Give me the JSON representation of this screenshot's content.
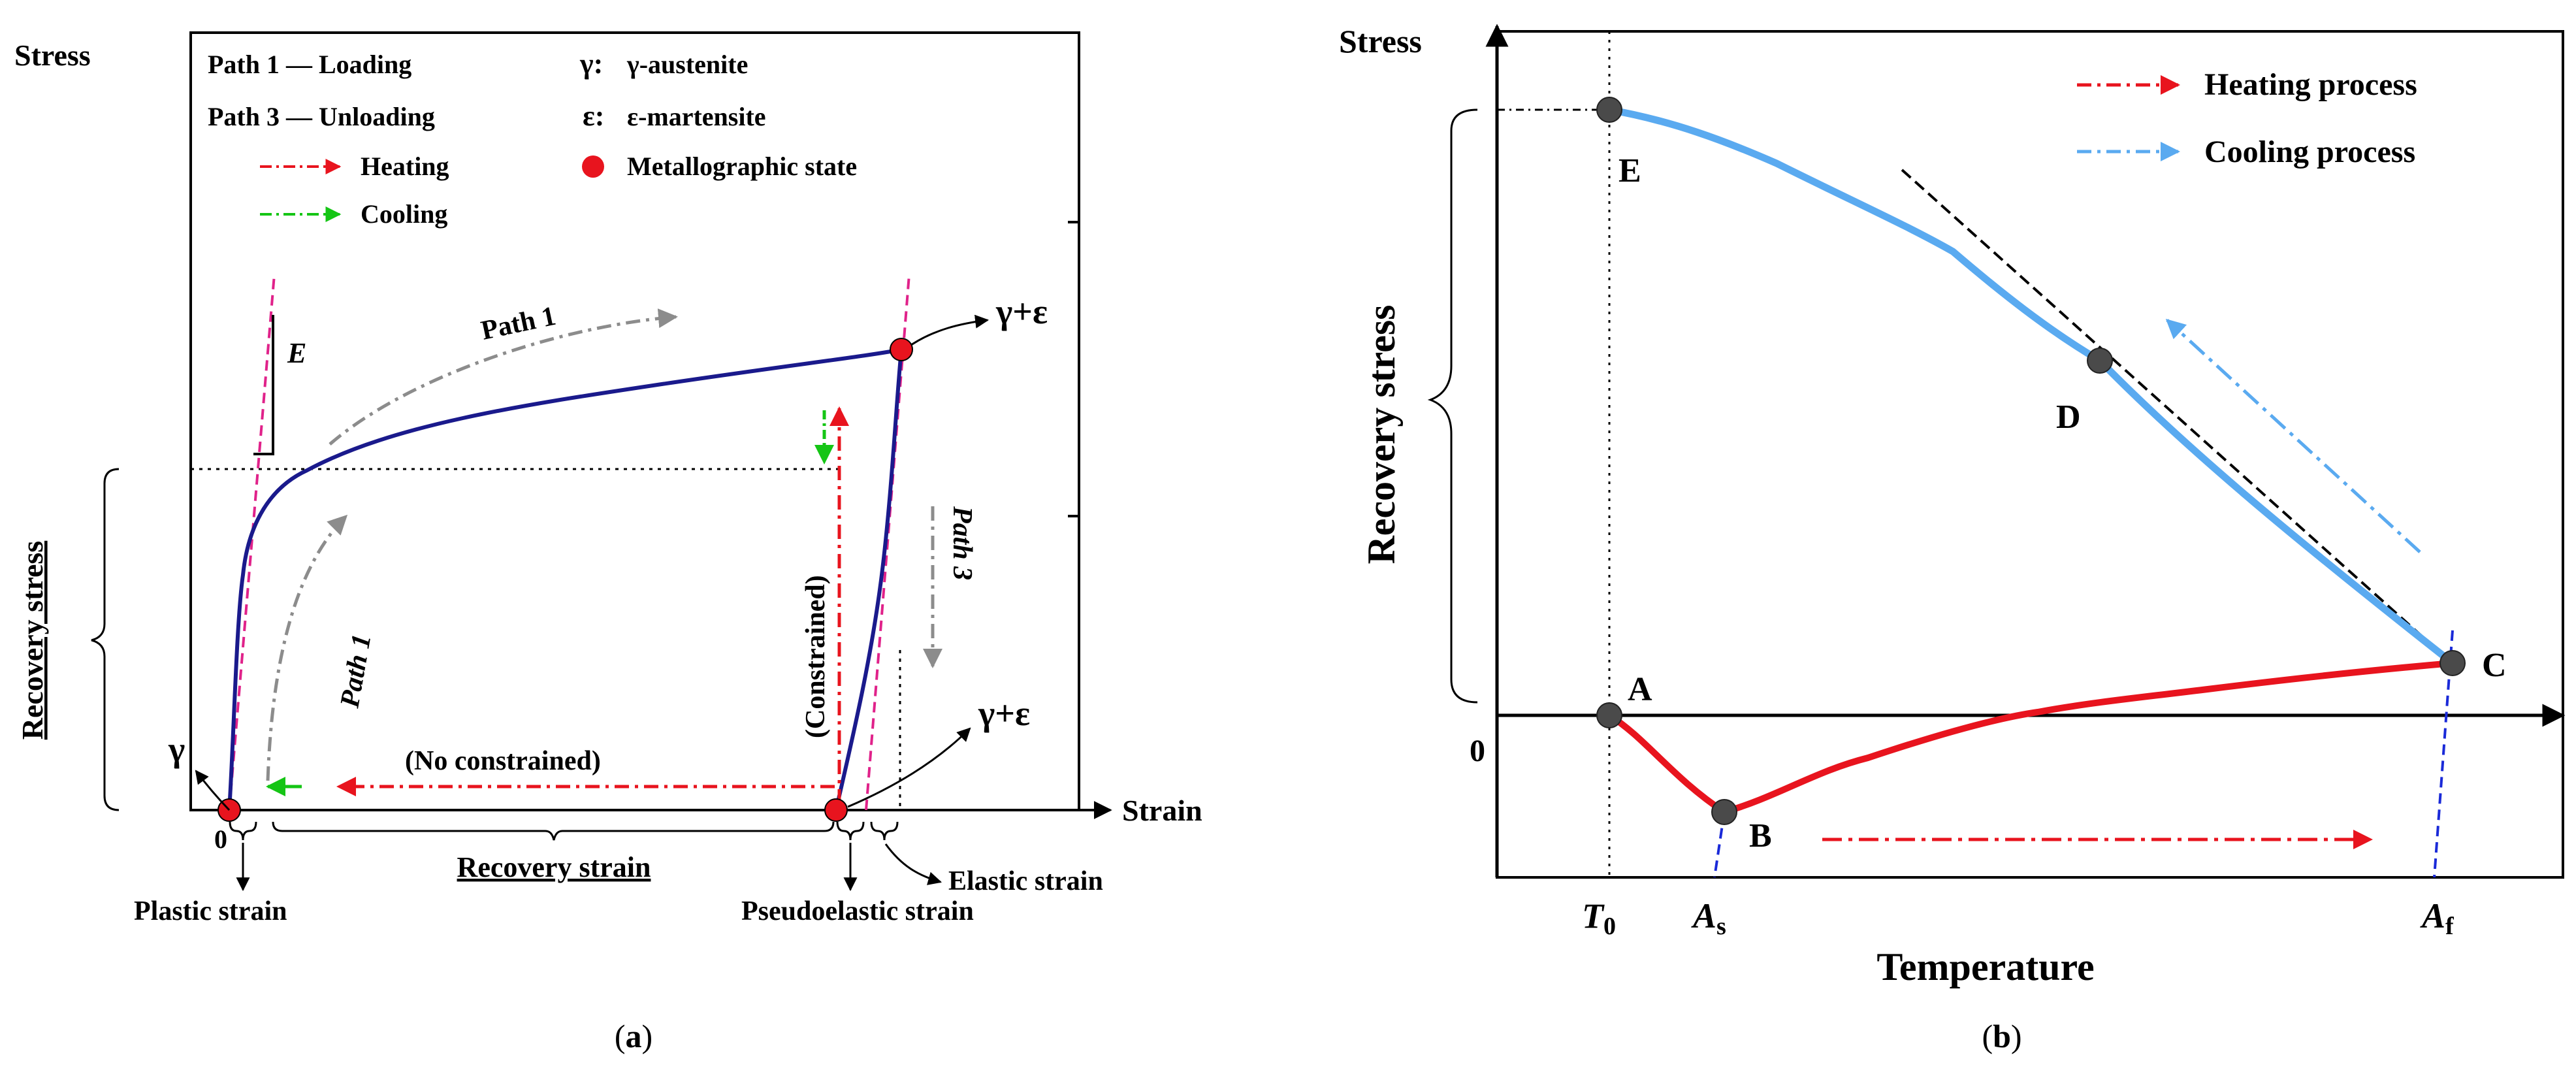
{
  "panel_a": {
    "caption_open": "(",
    "caption_letter": "a",
    "caption_close": ")",
    "y_axis_label": "Stress",
    "x_axis_label": "Strain",
    "origin_label": "0",
    "legend": {
      "path1": "Path 1 — Loading",
      "path3": "Path 3 — Unloading",
      "heating": "Heating",
      "cooling": "Cooling",
      "gamma_symbol": "γ:",
      "gamma_text": "γ-austenite",
      "epsilon_symbol": "ε:",
      "epsilon_text": "ε-martensite",
      "state_text": "Metallographic state"
    },
    "labels": {
      "E": "E",
      "path1_upper": "Path 1",
      "path1_lower": "Path 1",
      "path3": "Path 3",
      "gamma": "γ",
      "gamma_eps_top": "γ+ε",
      "gamma_eps_bottom": "γ+ε",
      "constrained": "(Constrained)",
      "no_constrained": "(No constrained)",
      "recovery_stress": "Recovery stress",
      "recovery_strain": "Recovery strain",
      "plastic_strain": "Plastic strain",
      "pseudoelastic_strain": "Pseudoelastic strain",
      "elastic_strain": "Elastic strain"
    },
    "colors": {
      "curve": "#1a1a8c",
      "heating": "#e8141e",
      "cooling": "#15c515",
      "modulus": "#e0228a",
      "path_arrow": "#8c8c8c",
      "state": "#e8141e"
    }
  },
  "panel_b": {
    "caption_open": "(",
    "caption_letter": "b",
    "caption_close": ")",
    "y_axis_label": "Stress",
    "x_axis_label": "Temperature",
    "y_title": "Recovery stress",
    "origin_label": "0",
    "legend": {
      "heating": "Heating process",
      "cooling": "Cooling process"
    },
    "points": {
      "A": "A",
      "B": "B",
      "C": "C",
      "D": "D",
      "E": "E"
    },
    "ticks": {
      "T0_main": "T",
      "T0_sub": "0",
      "As_main": "A",
      "As_sub": "s",
      "Af_main": "A",
      "Af_sub": "f"
    },
    "colors": {
      "cooling": "#5aaaf0",
      "heating": "#e8141e",
      "tangent": "#000000",
      "boundary": "#1a2ad8",
      "point": "#4a4a4a"
    }
  }
}
